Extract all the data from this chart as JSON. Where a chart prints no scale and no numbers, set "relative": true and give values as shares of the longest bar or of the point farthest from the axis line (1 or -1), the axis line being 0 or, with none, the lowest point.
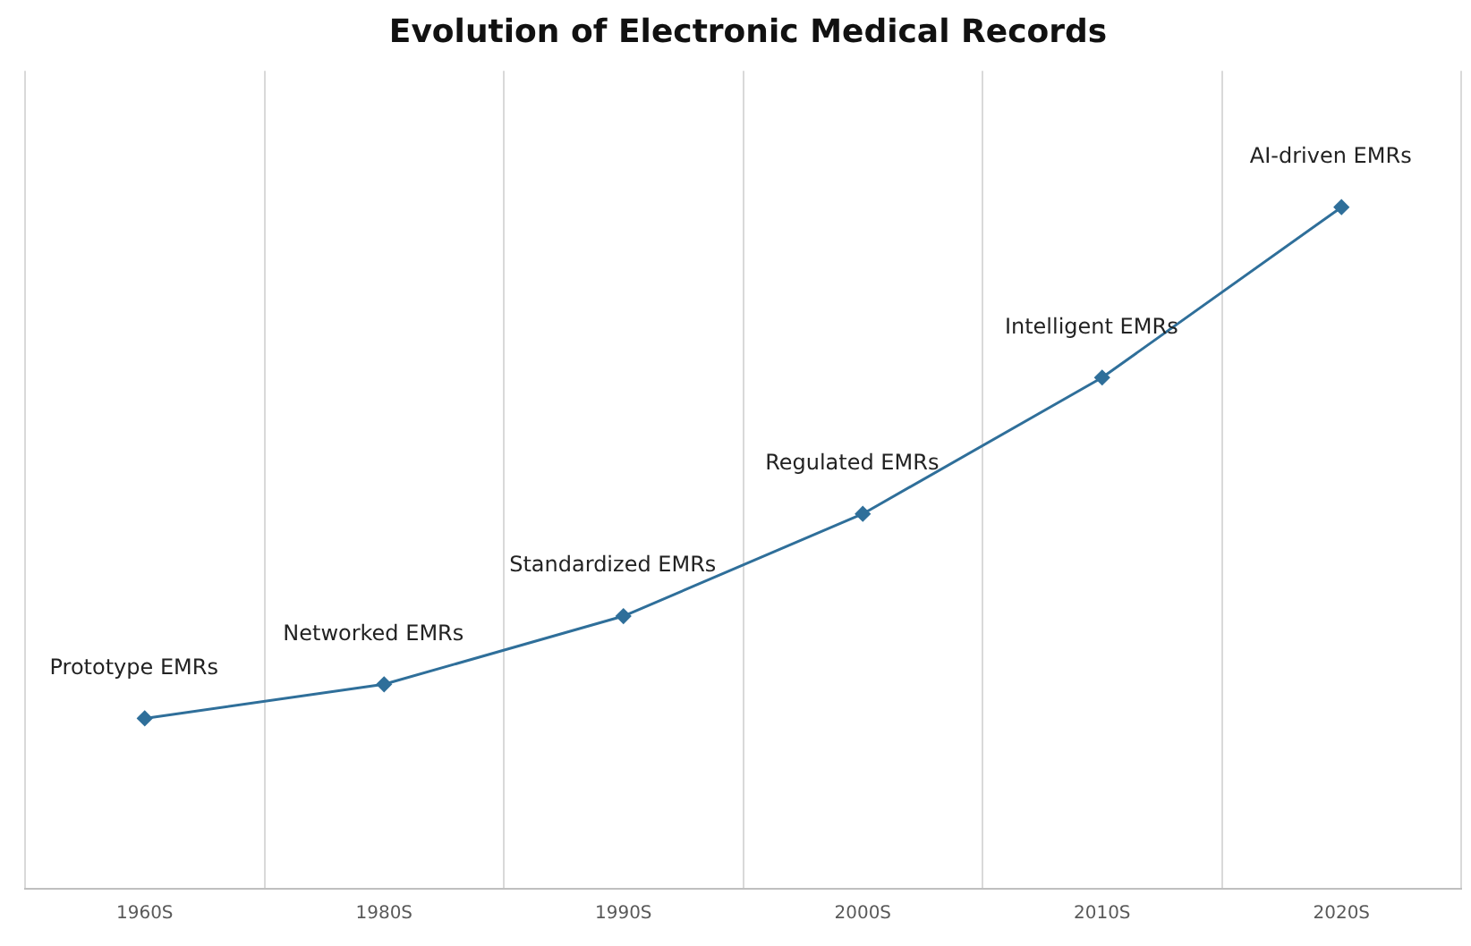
{
  "chart_data": {
    "type": "line",
    "title": "Evolution of Electronic Medical Records",
    "categories": [
      "1960S",
      "1980S",
      "1990S",
      "2000S",
      "2010S",
      "2020S"
    ],
    "relative": true,
    "series": [
      {
        "color": "#2f6f9a",
        "values": [
          0.25,
          0.3,
          0.4,
          0.55,
          0.75,
          1
        ]
      }
    ],
    "annotations": [
      {
        "text": "Prototype EMRs",
        "x": "1960S",
        "y": 0.25
      },
      {
        "text": "Networked EMRs",
        "x": "1980S",
        "y": 0.3
      },
      {
        "text": "Standardized EMRs",
        "x": "1990S",
        "y": 0.4
      },
      {
        "text": "Regulated EMRs",
        "x": "2000S",
        "y": 0.55
      },
      {
        "text": "Intelligent EMRs",
        "x": "2010S",
        "y": 0.75
      },
      {
        "text": "AI-driven EMRs",
        "x": "2020S",
        "y": 1
      }
    ],
    "grid": "x",
    "marker": "diamond",
    "line_style": "solid",
    "legend": false
  }
}
